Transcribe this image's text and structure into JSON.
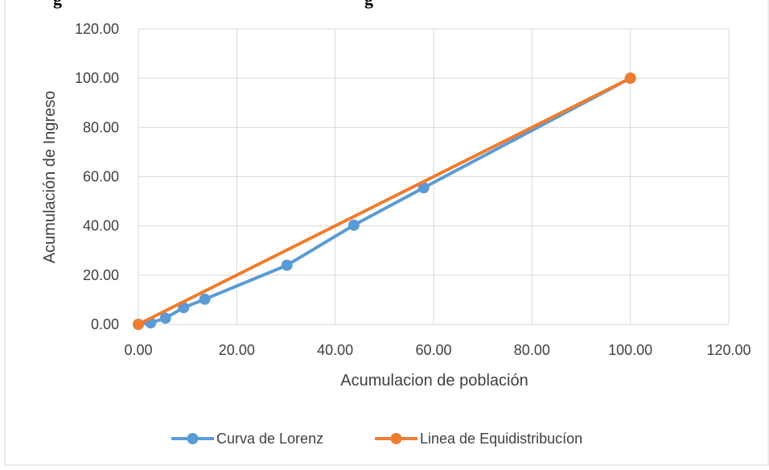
{
  "header": {
    "title_clipped_left": "g",
    "title_clipped_right": "g"
  },
  "chart_data": {
    "type": "line",
    "title": "",
    "xlabel": "Acumulacion de población",
    "ylabel": "Acumulación de Ingreso",
    "xlim": [
      0,
      120
    ],
    "ylim": [
      0,
      120
    ],
    "xticks": [
      "0.00",
      "20.00",
      "40.00",
      "60.00",
      "80.00",
      "100.00",
      "120.00"
    ],
    "yticks": [
      "0.00",
      "20.00",
      "40.00",
      "60.00",
      "80.00",
      "100.00",
      "120.00"
    ],
    "grid": true,
    "legend_position": "bottom",
    "series": [
      {
        "name": "Curva de Lorenz",
        "color": "#5b9bd5",
        "x": [
          0,
          2.5,
          5.5,
          9.2,
          13.5,
          30.2,
          43.8,
          58.0,
          100
        ],
        "y": [
          0,
          0.6,
          2.5,
          6.8,
          10.2,
          24.0,
          40.3,
          55.5,
          100
        ]
      },
      {
        "name": "Linea de Equidistribucíon",
        "color": "#ed7d31",
        "x": [
          0,
          100
        ],
        "y": [
          0,
          100
        ]
      }
    ]
  }
}
